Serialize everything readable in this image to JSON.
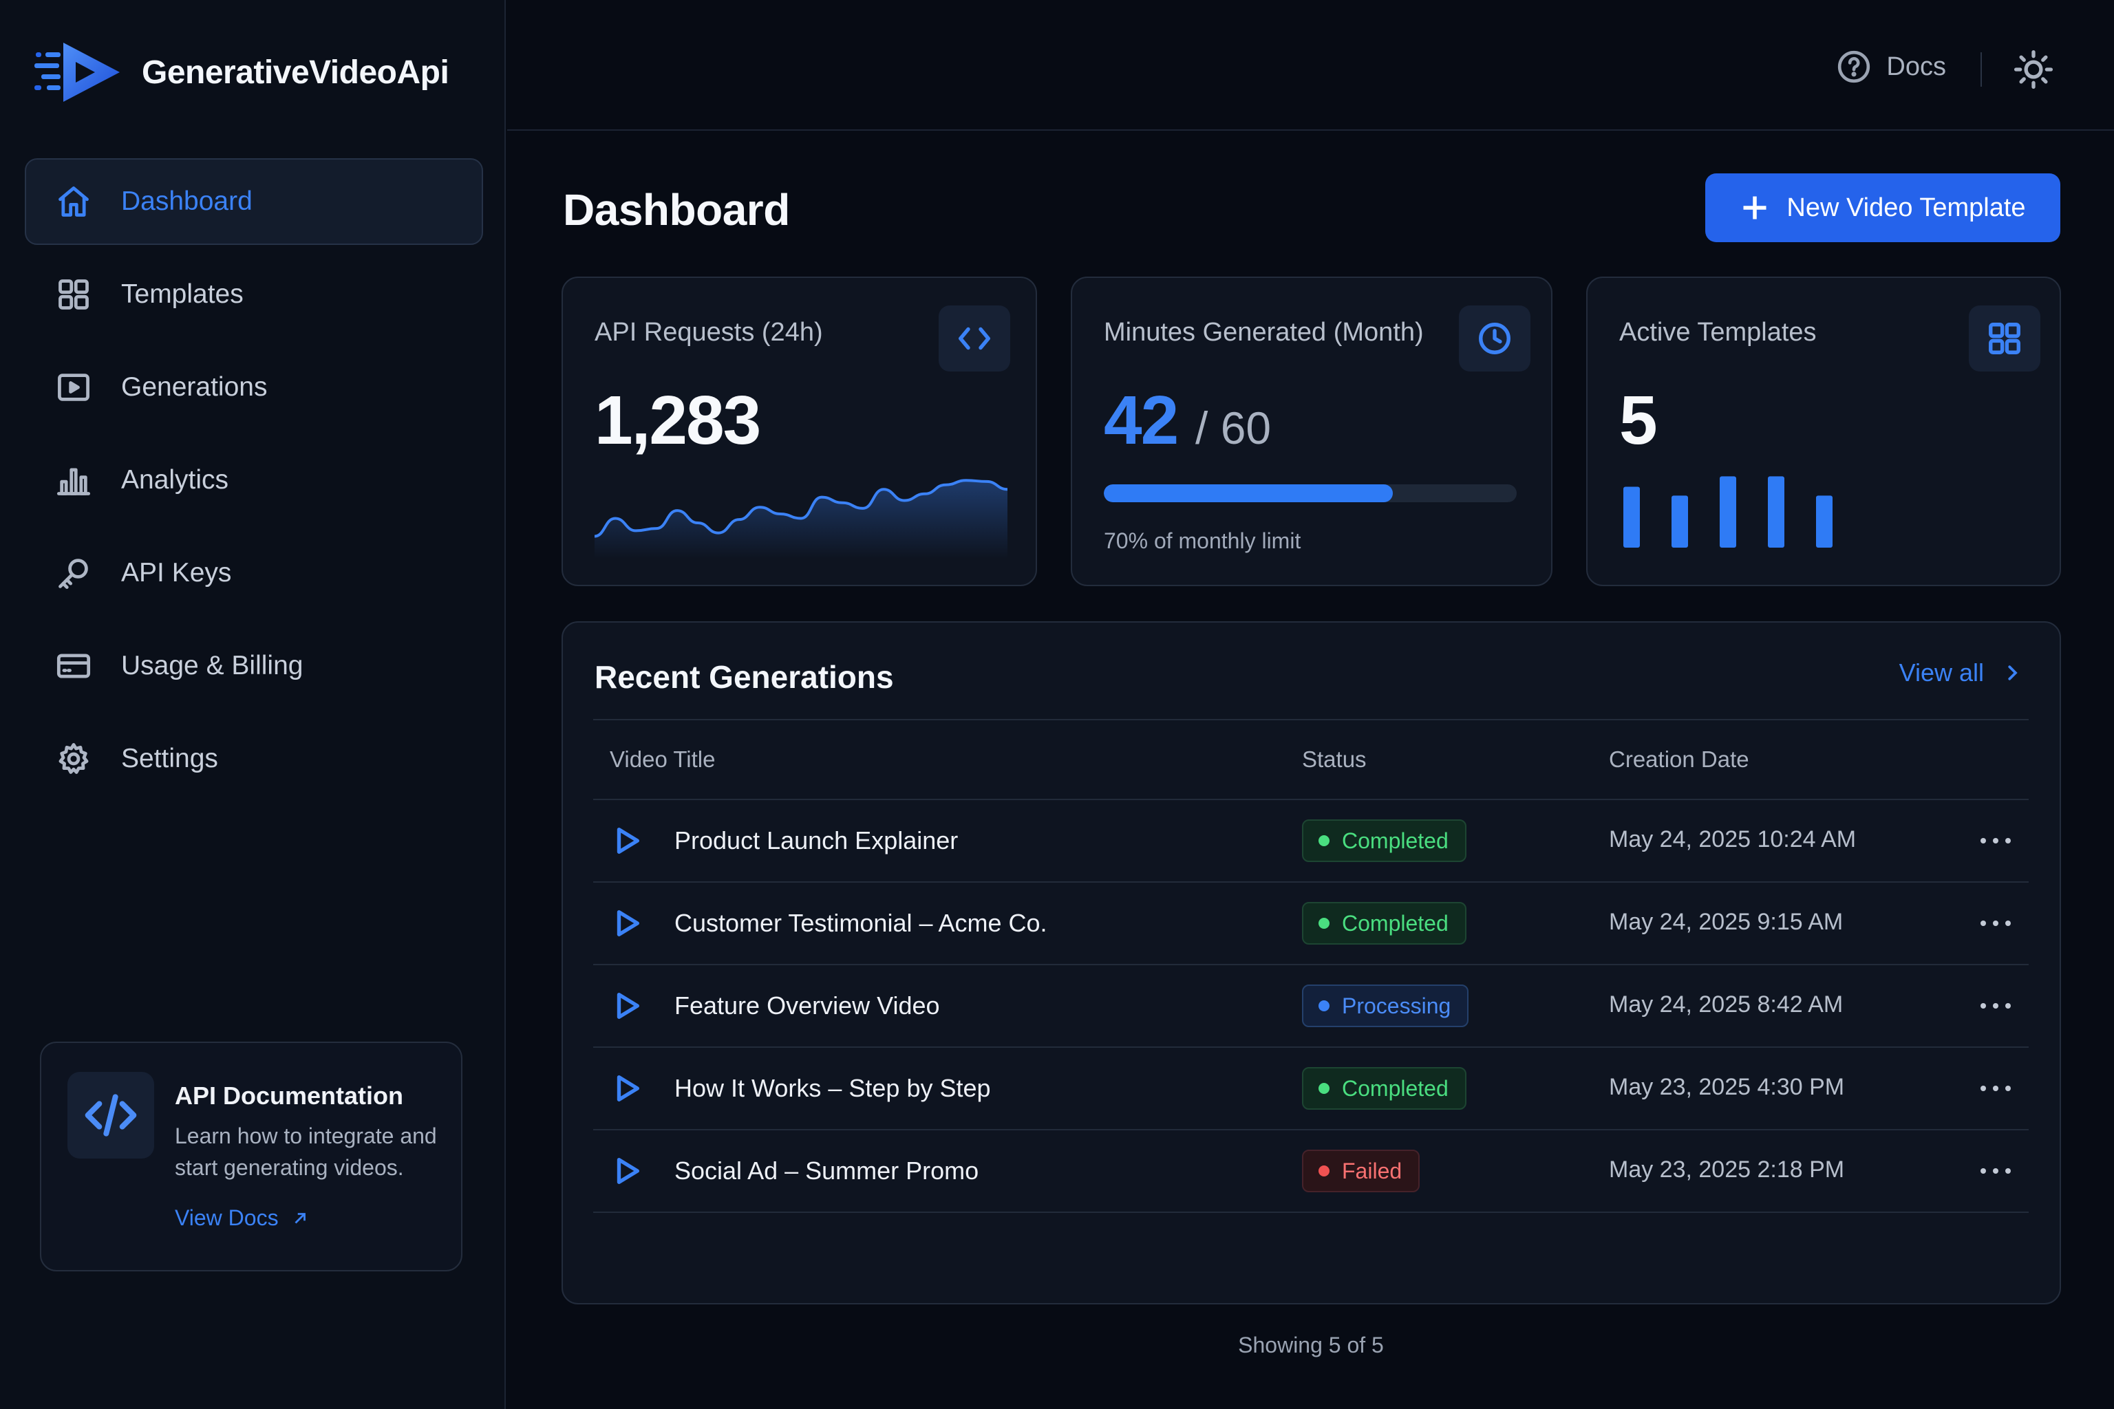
{
  "brand": {
    "name": "GenerativeVideoApi",
    "logo_icon": "play-logo-icon"
  },
  "sidebar": {
    "items": [
      {
        "label": "Dashboard",
        "icon": "home-icon",
        "active": true
      },
      {
        "label": "Templates",
        "icon": "grid-icon",
        "active": false
      },
      {
        "label": "Generations",
        "icon": "video-icon",
        "active": false
      },
      {
        "label": "Analytics",
        "icon": "bar-chart-icon",
        "active": false
      },
      {
        "label": "API Keys",
        "icon": "key-icon",
        "active": false
      },
      {
        "label": "Usage & Billing",
        "icon": "credit-card-icon",
        "active": false
      },
      {
        "label": "Settings",
        "icon": "gear-icon",
        "active": false
      }
    ],
    "doc_card": {
      "title": "API Documentation",
      "description": "Learn how to integrate and start generating videos.",
      "link_label": "View Docs",
      "icon": "code-icon"
    }
  },
  "topbar": {
    "docs_label": "Docs",
    "docs_icon": "help-circle-icon",
    "theme_icon": "sun-icon"
  },
  "main": {
    "title": "Dashboard",
    "new_button_label": "New Video Template",
    "cards": {
      "requests": {
        "title": "API Requests (24h)",
        "value": "1,283",
        "icon": "code-brackets-icon",
        "sparkline": [
          20,
          36,
          25,
          27,
          43,
          32,
          23,
          35,
          46,
          40,
          36,
          55,
          50,
          45,
          62,
          52,
          58,
          66,
          70,
          69,
          62
        ]
      },
      "minutes": {
        "title": "Minutes Generated (Month)",
        "value": "42",
        "denominator": "/ 60",
        "progress": 0.7,
        "note": "70% of monthly limit",
        "icon": "clock-icon"
      },
      "templates": {
        "title": "Active Templates",
        "value": "5",
        "icon": "grid-icon",
        "bars": [
          0.82,
          0.7,
          0.96,
          0.96,
          0.7
        ]
      }
    },
    "recent": {
      "title": "Recent Generations",
      "view_all_label": "View all",
      "columns": {
        "title": "Video Title",
        "status": "Status",
        "date": "Creation Date"
      },
      "rows": [
        {
          "title": "Product Launch Explainer",
          "status": "Completed",
          "status_type": "completed",
          "date": "May 24, 2025 10:24 AM"
        },
        {
          "title": "Customer Testimonial – Acme Co.",
          "status": "Completed",
          "status_type": "completed",
          "date": "May 24, 2025 9:15 AM"
        },
        {
          "title": "Feature Overview Video",
          "status": "Processing",
          "status_type": "processing",
          "date": "May 24, 2025 8:42 AM"
        },
        {
          "title": "How It Works – Step by Step",
          "status": "Completed",
          "status_type": "completed",
          "date": "May 23, 2025 4:30 PM"
        },
        {
          "title": "Social Ad – Summer Promo",
          "status": "Failed",
          "status_type": "failed",
          "date": "May 23, 2025 2:18 PM"
        }
      ],
      "footer": "Showing 5 of 5"
    }
  },
  "colors": {
    "accent": "#3b82f6",
    "background": "#070b14",
    "success": "#4ade80",
    "danger": "#f87171"
  }
}
